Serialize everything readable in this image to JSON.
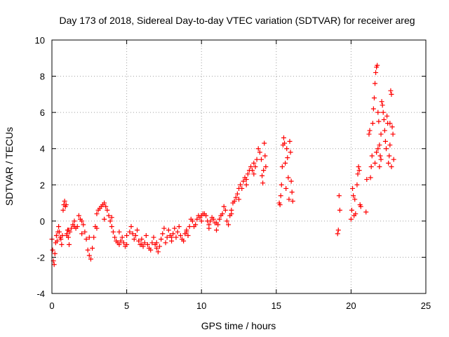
{
  "chart_data": {
    "type": "scatter",
    "title": "Day 173 of 2018, Sidereal Day-to-day VTEC variation (SDTVAR) for receiver areg",
    "xlabel": "GPS time / hours",
    "ylabel": "SDTVAR / TECUs",
    "xlim": [
      0,
      25
    ],
    "ylim": [
      -4,
      10
    ],
    "xticks": [
      0,
      5,
      10,
      15,
      20,
      25
    ],
    "yticks": [
      -4,
      -2,
      0,
      2,
      4,
      6,
      8,
      10
    ],
    "xtick_labels": [
      "0",
      "5",
      "10",
      "15",
      "20",
      "25"
    ],
    "ytick_labels": [
      "-4",
      "-2",
      "0",
      "2",
      "4",
      "6",
      "8",
      "10"
    ],
    "grid": true,
    "marker": "+",
    "color": "#ff0000",
    "series": [
      {
        "name": "SDTVAR",
        "points": [
          [
            0.0,
            -1.0
          ],
          [
            0.05,
            -1.6
          ],
          [
            0.1,
            -2.2
          ],
          [
            0.15,
            -2.4
          ],
          [
            0.2,
            -1.8
          ],
          [
            0.25,
            -1.2
          ],
          [
            0.3,
            -0.8
          ],
          [
            0.35,
            -1.1
          ],
          [
            0.4,
            -0.6
          ],
          [
            0.45,
            -0.3
          ],
          [
            0.5,
            -0.6
          ],
          [
            0.55,
            -0.9
          ],
          [
            0.6,
            -1.0
          ],
          [
            0.65,
            -1.3
          ],
          [
            0.7,
            -0.8
          ],
          [
            0.75,
            0.6
          ],
          [
            0.8,
            0.9
          ],
          [
            0.85,
            1.1
          ],
          [
            0.9,
            0.8
          ],
          [
            0.95,
            0.9
          ],
          [
            1.0,
            -0.7
          ],
          [
            1.05,
            -0.5
          ],
          [
            1.1,
            -0.9
          ],
          [
            1.15,
            -1.3
          ],
          [
            1.2,
            -0.6
          ],
          [
            1.3,
            -0.4
          ],
          [
            1.4,
            -0.2
          ],
          [
            1.5,
            0.0
          ],
          [
            1.6,
            -0.4
          ],
          [
            1.7,
            -0.3
          ],
          [
            1.8,
            0.3
          ],
          [
            1.9,
            0.1
          ],
          [
            2.0,
            0.0
          ],
          [
            2.1,
            -0.2
          ],
          [
            2.2,
            -0.6
          ],
          [
            2.3,
            -1.0
          ],
          [
            2.4,
            -1.6
          ],
          [
            2.5,
            -1.9
          ],
          [
            2.6,
            -2.1
          ],
          [
            2.7,
            -1.5
          ],
          [
            2.8,
            -0.9
          ],
          [
            2.9,
            -0.3
          ],
          [
            3.0,
            0.4
          ],
          [
            3.1,
            0.6
          ],
          [
            3.2,
            0.7
          ],
          [
            3.3,
            0.8
          ],
          [
            3.4,
            0.9
          ],
          [
            3.5,
            1.0
          ],
          [
            3.6,
            0.8
          ],
          [
            3.7,
            0.6
          ],
          [
            3.8,
            0.3
          ],
          [
            3.9,
            0.0
          ],
          [
            4.0,
            -0.3
          ],
          [
            4.1,
            -0.6
          ],
          [
            4.2,
            -0.9
          ],
          [
            4.3,
            -1.1
          ],
          [
            4.4,
            -1.2
          ],
          [
            4.5,
            -1.3
          ],
          [
            4.6,
            -1.1
          ],
          [
            4.7,
            -0.9
          ],
          [
            4.8,
            -1.2
          ],
          [
            4.9,
            -1.4
          ],
          [
            5.0,
            -1.3
          ],
          [
            1.0,
            -0.8
          ],
          [
            1.1,
            -0.5
          ],
          [
            1.5,
            -0.3
          ],
          [
            2.0,
            -0.7
          ],
          [
            2.5,
            -0.9
          ],
          [
            3.0,
            -0.4
          ],
          [
            3.5,
            0.1
          ],
          [
            4.0,
            0.2
          ],
          [
            4.5,
            -0.6
          ],
          [
            5.0,
            -0.8
          ],
          [
            5.2,
            -0.6
          ],
          [
            5.3,
            -0.3
          ],
          [
            5.4,
            -0.7
          ],
          [
            5.5,
            -1.0
          ],
          [
            5.6,
            -0.8
          ],
          [
            5.7,
            -0.5
          ],
          [
            5.8,
            -1.1
          ],
          [
            5.9,
            -1.3
          ],
          [
            6.0,
            -1.0
          ],
          [
            6.1,
            -1.4
          ],
          [
            6.2,
            -1.2
          ],
          [
            6.3,
            -0.8
          ],
          [
            6.4,
            -1.3
          ],
          [
            6.5,
            -1.5
          ],
          [
            6.6,
            -1.6
          ],
          [
            6.7,
            -1.2
          ],
          [
            6.8,
            -0.9
          ],
          [
            6.9,
            -1.3
          ],
          [
            7.0,
            -1.5
          ],
          [
            7.1,
            -1.7
          ],
          [
            7.2,
            -1.4
          ],
          [
            7.3,
            -1.0
          ],
          [
            7.4,
            -0.7
          ],
          [
            7.5,
            -0.4
          ],
          [
            7.6,
            -1.2
          ],
          [
            7.7,
            -0.9
          ],
          [
            7.8,
            -0.5
          ],
          [
            7.9,
            -0.8
          ],
          [
            8.0,
            -1.1
          ],
          [
            8.1,
            -0.7
          ],
          [
            8.2,
            -0.4
          ],
          [
            8.3,
            -0.9
          ],
          [
            8.4,
            -0.6
          ],
          [
            8.5,
            -0.3
          ],
          [
            8.6,
            -0.8
          ],
          [
            8.7,
            -1.0
          ],
          [
            8.8,
            -1.1
          ],
          [
            8.9,
            -0.7
          ],
          [
            9.0,
            -0.5
          ],
          [
            9.1,
            -0.8
          ],
          [
            9.2,
            -0.3
          ],
          [
            9.3,
            0.1
          ],
          [
            9.4,
            0.0
          ],
          [
            9.5,
            -0.3
          ],
          [
            9.6,
            -0.2
          ],
          [
            9.7,
            0.1
          ],
          [
            9.8,
            0.3
          ],
          [
            9.9,
            0.2
          ],
          [
            10.0,
            0.3
          ],
          [
            10.1,
            0.4
          ],
          [
            10.2,
            0.4
          ],
          [
            10.3,
            0.3
          ],
          [
            10.4,
            0.0
          ],
          [
            10.5,
            -0.2
          ],
          [
            10.6,
            0.0
          ],
          [
            10.7,
            0.2
          ],
          [
            10.8,
            0.1
          ],
          [
            10.9,
            -0.1
          ],
          [
            11.0,
            -0.1
          ],
          [
            11.1,
            -0.2
          ],
          [
            11.2,
            0.1
          ],
          [
            11.3,
            0.3
          ],
          [
            11.4,
            0.4
          ],
          [
            11.5,
            0.8
          ],
          [
            11.6,
            0.6
          ],
          [
            11.7,
            0.0
          ],
          [
            11.8,
            -0.2
          ],
          [
            11.9,
            0.3
          ],
          [
            12.0,
            0.6
          ],
          [
            12.1,
            1.0
          ],
          [
            12.2,
            1.1
          ],
          [
            12.3,
            1.3
          ],
          [
            12.4,
            1.5
          ],
          [
            12.5,
            1.8
          ],
          [
            12.6,
            2.0
          ],
          [
            12.7,
            1.8
          ],
          [
            12.8,
            2.2
          ],
          [
            12.9,
            2.4
          ],
          [
            13.0,
            2.3
          ],
          [
            13.1,
            2.6
          ],
          [
            13.2,
            2.8
          ],
          [
            13.3,
            3.0
          ],
          [
            13.4,
            2.8
          ],
          [
            13.5,
            3.2
          ],
          [
            13.6,
            3.0
          ],
          [
            13.7,
            3.4
          ],
          [
            13.8,
            4.0
          ],
          [
            13.9,
            3.8
          ],
          [
            14.0,
            3.4
          ],
          [
            14.05,
            2.5
          ],
          [
            14.1,
            2.1
          ],
          [
            14.15,
            2.8
          ],
          [
            14.2,
            4.3
          ],
          [
            14.25,
            3.6
          ],
          [
            14.3,
            3.0
          ],
          [
            12.0,
            0.4
          ],
          [
            12.5,
            1.2
          ],
          [
            13.0,
            2.0
          ],
          [
            13.5,
            2.6
          ],
          [
            6.0,
            -1.3
          ],
          [
            7.0,
            -1.2
          ],
          [
            8.0,
            -0.9
          ],
          [
            9.0,
            -0.6
          ],
          [
            10.0,
            0.0
          ],
          [
            10.5,
            -0.4
          ],
          [
            11.0,
            -0.5
          ],
          [
            15.2,
            1.0
          ],
          [
            15.25,
            0.9
          ],
          [
            15.3,
            1.4
          ],
          [
            15.35,
            2.0
          ],
          [
            15.4,
            3.0
          ],
          [
            15.45,
            4.2
          ],
          [
            15.5,
            4.6
          ],
          [
            15.55,
            4.3
          ],
          [
            15.6,
            3.2
          ],
          [
            15.65,
            1.8
          ],
          [
            15.7,
            4.0
          ],
          [
            15.75,
            3.5
          ],
          [
            15.8,
            2.4
          ],
          [
            15.85,
            1.2
          ],
          [
            15.9,
            4.4
          ],
          [
            15.95,
            3.8
          ],
          [
            16.0,
            2.2
          ],
          [
            16.05,
            1.6
          ],
          [
            16.1,
            1.1
          ],
          [
            19.1,
            -0.7
          ],
          [
            19.15,
            -0.5
          ],
          [
            19.2,
            1.4
          ],
          [
            19.25,
            0.6
          ],
          [
            20.0,
            0.1
          ],
          [
            20.05,
            0.6
          ],
          [
            20.1,
            1.8
          ],
          [
            20.15,
            1.4
          ],
          [
            20.2,
            0.3
          ],
          [
            20.25,
            1.2
          ],
          [
            20.3,
            0.4
          ],
          [
            20.4,
            2.0
          ],
          [
            20.45,
            2.6
          ],
          [
            20.5,
            3.0
          ],
          [
            20.55,
            2.8
          ],
          [
            20.6,
            0.9
          ],
          [
            20.65,
            0.8
          ],
          [
            21.0,
            0.5
          ],
          [
            21.05,
            2.3
          ],
          [
            21.2,
            4.8
          ],
          [
            21.25,
            5.0
          ],
          [
            21.3,
            2.4
          ],
          [
            21.35,
            3.0
          ],
          [
            21.4,
            3.6
          ],
          [
            21.45,
            5.4
          ],
          [
            21.5,
            6.2
          ],
          [
            21.55,
            6.8
          ],
          [
            21.6,
            7.6
          ],
          [
            21.65,
            8.2
          ],
          [
            21.7,
            8.5
          ],
          [
            21.75,
            8.6
          ],
          [
            21.8,
            6.0
          ],
          [
            21.85,
            5.5
          ],
          [
            21.9,
            4.2
          ],
          [
            21.95,
            3.6
          ],
          [
            22.0,
            4.8
          ],
          [
            22.05,
            6.6
          ],
          [
            22.1,
            6.4
          ],
          [
            22.15,
            6.0
          ],
          [
            22.2,
            5.6
          ],
          [
            22.25,
            5.0
          ],
          [
            22.3,
            4.4
          ],
          [
            22.35,
            4.0
          ],
          [
            22.4,
            5.8
          ],
          [
            22.45,
            5.4
          ],
          [
            22.5,
            3.2
          ],
          [
            22.55,
            3.6
          ],
          [
            22.6,
            4.2
          ],
          [
            22.65,
            7.2
          ],
          [
            22.7,
            7.0
          ],
          [
            22.75,
            5.2
          ],
          [
            22.8,
            4.8
          ],
          [
            22.85,
            3.4
          ],
          [
            21.6,
            3.2
          ],
          [
            21.7,
            3.8
          ],
          [
            21.8,
            4.0
          ],
          [
            21.9,
            3.0
          ],
          [
            22.0,
            3.4
          ],
          [
            22.6,
            5.4
          ],
          [
            22.7,
            3.0
          ]
        ]
      }
    ]
  }
}
